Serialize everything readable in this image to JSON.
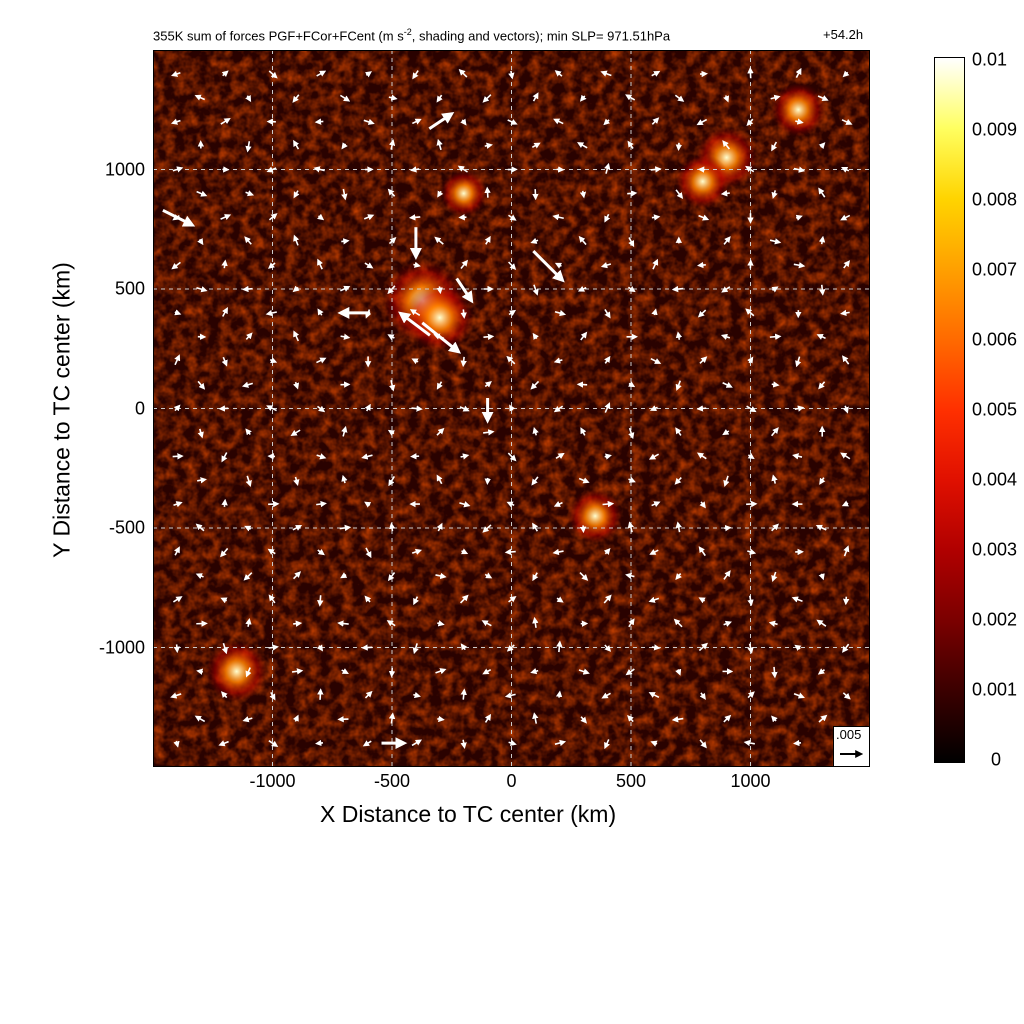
{
  "chart_data": {
    "type": "heatmap",
    "title": "355K sum of forces PGF+FCor+FCent (m s$^{-2}$, shading and vectors); min SLP= 971.51hPa",
    "title_display": "355K sum of forces PGF+FCor+FCent (m s",
    "title_sup": "-2",
    "title_rest": ", shading and vectors); min SLP= 971.51hPa",
    "time_label": "+54.2h",
    "xlabel": "X Distance to TC center (km)",
    "ylabel": "Y Distance to TC center (km)",
    "xlim": [
      -1500,
      1500
    ],
    "ylim": [
      -1500,
      1500
    ],
    "x_ticks": [
      -1000,
      -500,
      0,
      500,
      1000
    ],
    "y_ticks": [
      1000,
      500,
      0,
      -500,
      -1000
    ],
    "grid": "dashed",
    "colorbar": {
      "min": 0,
      "max": 0.01,
      "ticks": [
        "0.01",
        "0.009",
        "0.008",
        "0.007",
        "0.006",
        "0.005",
        "0.004",
        "0.003",
        "0.002",
        "0.001",
        "0"
      ],
      "colormap": "black-red-yellow-white"
    },
    "reference_vector": {
      "label": ".005",
      "value": 0.005
    },
    "hotspots": [
      {
        "x": -370,
        "y": 450,
        "v": 0.009
      },
      {
        "x": -300,
        "y": 380,
        "v": 0.007
      },
      {
        "x": -200,
        "y": 900,
        "v": 0.004
      },
      {
        "x": 900,
        "y": 1050,
        "v": 0.006
      },
      {
        "x": 1200,
        "y": 1250,
        "v": 0.005
      },
      {
        "x": -1150,
        "y": -1100,
        "v": 0.006
      },
      {
        "x": 350,
        "y": -450,
        "v": 0.005
      },
      {
        "x": 800,
        "y": 950,
        "v": 0.005
      }
    ],
    "vectors": [
      {
        "x": -400,
        "y": 350,
        "u": -0.004,
        "v": 0.003
      },
      {
        "x": -300,
        "y": 300,
        "u": 0.005,
        "v": -0.004
      },
      {
        "x": -650,
        "y": 400,
        "u": -0.004,
        "v": 0.0
      },
      {
        "x": -400,
        "y": 700,
        "u": 0.0,
        "v": -0.004
      },
      {
        "x": 150,
        "y": 600,
        "u": 0.004,
        "v": -0.004
      },
      {
        "x": -1400,
        "y": 800,
        "u": 0.004,
        "v": -0.002
      },
      {
        "x": -300,
        "y": 1200,
        "u": 0.003,
        "v": 0.002
      },
      {
        "x": -500,
        "y": -1400,
        "u": 0.003,
        "v": 0.0
      },
      {
        "x": -100,
        "y": 0,
        "u": 0.0,
        "v": -0.003
      },
      {
        "x": -200,
        "y": 500,
        "u": 0.002,
        "v": -0.003
      }
    ]
  }
}
